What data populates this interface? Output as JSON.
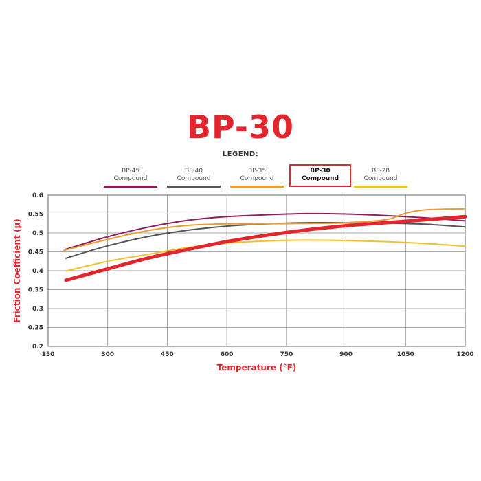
{
  "header": {
    "title": "BP-30",
    "legend_label": "LEGEND:"
  },
  "chart_data": {
    "type": "line",
    "title": "BP-30",
    "xlabel": "Temperature (°F)",
    "ylabel": "Friction Coefficient (µ)",
    "xlim": [
      150,
      1200
    ],
    "ylim": [
      0.2,
      0.6
    ],
    "x_ticks": [
      "150",
      "300",
      "450",
      "600",
      "750",
      "900",
      "1050",
      "1200"
    ],
    "y_ticks": [
      "0.2",
      "0.25",
      "0.3",
      "0.35",
      "0.4",
      "0.45",
      "0.5",
      "0.55",
      "0.6"
    ],
    "grid": true,
    "legend_position": "top",
    "series": [
      {
        "name": "BP-45 Compound",
        "line1": "BP-45",
        "line2": "Compound",
        "color": "#8e1f5f",
        "width": 2,
        "highlight": false,
        "points": [
          [
            195,
            0.457
          ],
          [
            300,
            0.49
          ],
          [
            400,
            0.515
          ],
          [
            500,
            0.533
          ],
          [
            600,
            0.543
          ],
          [
            700,
            0.548
          ],
          [
            800,
            0.551
          ],
          [
            900,
            0.55
          ],
          [
            1000,
            0.546
          ],
          [
            1100,
            0.54
          ],
          [
            1200,
            0.532
          ]
        ]
      },
      {
        "name": "BP-40 Compound",
        "line1": "BP-40",
        "line2": "Compound",
        "color": "#555555",
        "width": 2,
        "highlight": false,
        "points": [
          [
            195,
            0.433
          ],
          [
            300,
            0.466
          ],
          [
            400,
            0.49
          ],
          [
            500,
            0.507
          ],
          [
            600,
            0.518
          ],
          [
            700,
            0.524
          ],
          [
            800,
            0.527
          ],
          [
            900,
            0.527
          ],
          [
            1000,
            0.526
          ],
          [
            1100,
            0.523
          ],
          [
            1200,
            0.516
          ]
        ]
      },
      {
        "name": "BP-35 Compound",
        "line1": "BP-35",
        "line2": "Compound",
        "color": "#ef9a2f",
        "width": 2,
        "highlight": false,
        "points": [
          [
            190,
            0.454
          ],
          [
            300,
            0.483
          ],
          [
            400,
            0.506
          ],
          [
            500,
            0.52
          ],
          [
            600,
            0.524
          ],
          [
            700,
            0.524
          ],
          [
            800,
            0.525
          ],
          [
            900,
            0.527
          ],
          [
            1000,
            0.535
          ],
          [
            1050,
            0.552
          ],
          [
            1100,
            0.561
          ],
          [
            1200,
            0.564
          ]
        ]
      },
      {
        "name": "BP-30 Compound",
        "line1": "BP-30",
        "line2": "Compound",
        "color": "#e3262e",
        "width": 5,
        "highlight": true,
        "points": [
          [
            195,
            0.375
          ],
          [
            300,
            0.405
          ],
          [
            400,
            0.433
          ],
          [
            500,
            0.456
          ],
          [
            600,
            0.477
          ],
          [
            700,
            0.494
          ],
          [
            800,
            0.508
          ],
          [
            900,
            0.519
          ],
          [
            1000,
            0.527
          ],
          [
            1100,
            0.535
          ],
          [
            1200,
            0.543
          ]
        ]
      },
      {
        "name": "BP-28 Compound",
        "line1": "BP-28",
        "line2": "Compound",
        "color": "#f2c029",
        "width": 2,
        "highlight": false,
        "points": [
          [
            195,
            0.399
          ],
          [
            300,
            0.425
          ],
          [
            400,
            0.443
          ],
          [
            500,
            0.461
          ],
          [
            600,
            0.473
          ],
          [
            700,
            0.479
          ],
          [
            800,
            0.481
          ],
          [
            900,
            0.48
          ],
          [
            1000,
            0.477
          ],
          [
            1100,
            0.472
          ],
          [
            1200,
            0.465
          ]
        ]
      }
    ]
  }
}
